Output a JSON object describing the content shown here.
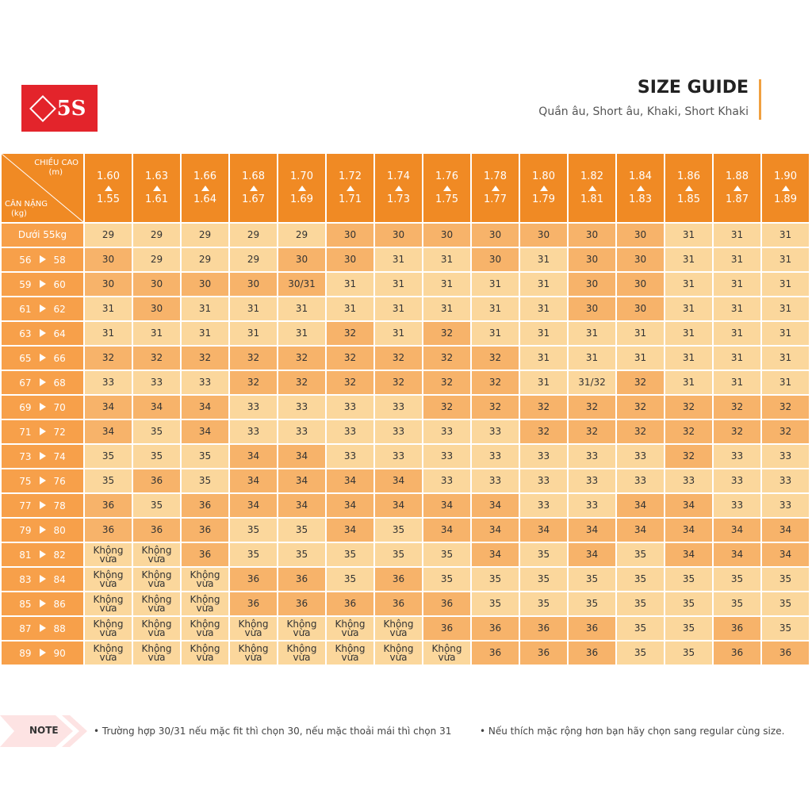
{
  "logo": "5S",
  "header": {
    "title": "SIZE GUIDE",
    "subtitle": "Quần âu, Short âu, Khaki, Short Khaki"
  },
  "table": {
    "corner": {
      "top": "CHIỀU CAO",
      "top_unit": "(m)",
      "bottom": "CÂN NẶNG",
      "bottom_unit": "(kg)"
    },
    "columns": [
      {
        "top": "1.60",
        "bottom": "1.55"
      },
      {
        "top": "1.63",
        "bottom": "1.61"
      },
      {
        "top": "1.66",
        "bottom": "1.64"
      },
      {
        "top": "1.68",
        "bottom": "1.67"
      },
      {
        "top": "1.70",
        "bottom": "1.69"
      },
      {
        "top": "1.72",
        "bottom": "1.71"
      },
      {
        "top": "1.74",
        "bottom": "1.73"
      },
      {
        "top": "1.76",
        "bottom": "1.75"
      },
      {
        "top": "1.78",
        "bottom": "1.77"
      },
      {
        "top": "1.80",
        "bottom": "1.79"
      },
      {
        "top": "1.82",
        "bottom": "1.81"
      },
      {
        "top": "1.84",
        "bottom": "1.83"
      },
      {
        "top": "1.86",
        "bottom": "1.85"
      },
      {
        "top": "1.88",
        "bottom": "1.87"
      },
      {
        "top": "1.90",
        "bottom": "1.89"
      }
    ],
    "rows": [
      {
        "label": "Dưới 55kg",
        "cells": [
          "29",
          "29",
          "29",
          "29",
          "29",
          "30",
          "30",
          "30",
          "30",
          "30",
          "30",
          "30",
          "31",
          "31",
          "31"
        ]
      },
      {
        "from": "56",
        "to": "58",
        "cells": [
          "30",
          "29",
          "29",
          "29",
          "30",
          "30",
          "31",
          "31",
          "30",
          "31",
          "30",
          "30",
          "31",
          "31",
          "31"
        ]
      },
      {
        "from": "59",
        "to": "60",
        "cells": [
          "30",
          "30",
          "30",
          "30",
          "30/31",
          "31",
          "31",
          "31",
          "31",
          "31",
          "30",
          "30",
          "31",
          "31",
          "31"
        ]
      },
      {
        "from": "61",
        "to": "62",
        "cells": [
          "31",
          "30",
          "31",
          "31",
          "31",
          "31",
          "31",
          "31",
          "31",
          "31",
          "30",
          "30",
          "31",
          "31",
          "31"
        ]
      },
      {
        "from": "63",
        "to": "64",
        "cells": [
          "31",
          "31",
          "31",
          "31",
          "31",
          "32",
          "31",
          "32",
          "31",
          "31",
          "31",
          "31",
          "31",
          "31",
          "31"
        ]
      },
      {
        "from": "65",
        "to": "66",
        "cells": [
          "32",
          "32",
          "32",
          "32",
          "32",
          "32",
          "32",
          "32",
          "32",
          "31",
          "31",
          "31",
          "31",
          "31",
          "31"
        ]
      },
      {
        "from": "67",
        "to": "68",
        "cells": [
          "33",
          "33",
          "33",
          "32",
          "32",
          "32",
          "32",
          "32",
          "32",
          "31",
          "31/32",
          "32",
          "31",
          "31",
          "31"
        ]
      },
      {
        "from": "69",
        "to": "70",
        "cells": [
          "34",
          "34",
          "34",
          "33",
          "33",
          "33",
          "33",
          "32",
          "32",
          "32",
          "32",
          "32",
          "32",
          "32",
          "32"
        ]
      },
      {
        "from": "71",
        "to": "72",
        "cells": [
          "34",
          "35",
          "34",
          "33",
          "33",
          "33",
          "33",
          "33",
          "33",
          "32",
          "32",
          "32",
          "32",
          "32",
          "32"
        ]
      },
      {
        "from": "73",
        "to": "74",
        "cells": [
          "35",
          "35",
          "35",
          "34",
          "34",
          "33",
          "33",
          "33",
          "33",
          "33",
          "33",
          "33",
          "32",
          "33",
          "33"
        ]
      },
      {
        "from": "75",
        "to": "76",
        "cells": [
          "35",
          "36",
          "35",
          "34",
          "34",
          "34",
          "34",
          "33",
          "33",
          "33",
          "33",
          "33",
          "33",
          "33",
          "33"
        ]
      },
      {
        "from": "77",
        "to": "78",
        "cells": [
          "36",
          "35",
          "36",
          "34",
          "34",
          "34",
          "34",
          "34",
          "34",
          "33",
          "33",
          "34",
          "34",
          "33",
          "33"
        ]
      },
      {
        "from": "79",
        "to": "80",
        "cells": [
          "36",
          "36",
          "36",
          "35",
          "35",
          "34",
          "35",
          "34",
          "34",
          "34",
          "34",
          "34",
          "34",
          "34",
          "34"
        ]
      },
      {
        "from": "81",
        "to": "82",
        "cells": [
          "Không vừa",
          "Không vừa",
          "36",
          "35",
          "35",
          "35",
          "35",
          "35",
          "34",
          "35",
          "34",
          "35",
          "34",
          "34",
          "34"
        ]
      },
      {
        "from": "83",
        "to": "84",
        "cells": [
          "Không vừa",
          "Không vừa",
          "Không vừa",
          "36",
          "36",
          "35",
          "36",
          "35",
          "35",
          "35",
          "35",
          "35",
          "35",
          "35",
          "35"
        ]
      },
      {
        "from": "85",
        "to": "86",
        "cells": [
          "Không vừa",
          "Không vừa",
          "Không vừa",
          "36",
          "36",
          "36",
          "36",
          "36",
          "35",
          "35",
          "35",
          "35",
          "35",
          "35",
          "35"
        ]
      },
      {
        "from": "87",
        "to": "88",
        "cells": [
          "Không vừa",
          "Không vừa",
          "Không vừa",
          "Không vừa",
          "Không vừa",
          "Không vừa",
          "Không vừa",
          "36",
          "36",
          "36",
          "36",
          "35",
          "35",
          "36",
          "35"
        ]
      },
      {
        "from": "89",
        "to": "90",
        "cells": [
          "Không vừa",
          "Không vừa",
          "Không vừa",
          "Không vừa",
          "Không vừa",
          "Không vừa",
          "Không vừa",
          "Không vừa",
          "36",
          "36",
          "36",
          "35",
          "35",
          "36",
          "36"
        ]
      }
    ]
  },
  "note": {
    "label": "NOTE",
    "items": [
      "Trường hợp 30/31 nếu mặc fit thì chọn 30, nếu mặc thoải mái thì chọn 31",
      "Nếu thích mặc rộng hơn bạn hãy chọn sang regular cùng size."
    ]
  }
}
